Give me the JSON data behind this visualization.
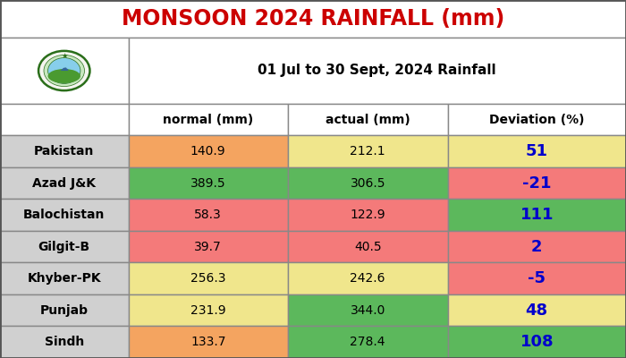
{
  "title": "MONSOON 2024 RAINFALL (mm)",
  "subtitle": "01 Jul to 30 Sept, 2024 Rainfall",
  "col_headers": [
    "normal (mm)",
    "actual (mm)",
    "Deviation (%)"
  ],
  "rows": [
    {
      "region": "Pakistan",
      "normal": "140.9",
      "actual": "212.1",
      "deviation": "51"
    },
    {
      "region": "Azad J&K",
      "normal": "389.5",
      "actual": "306.5",
      "deviation": "-21"
    },
    {
      "region": "Balochistan",
      "normal": "58.3",
      "actual": "122.9",
      "deviation": "111"
    },
    {
      "region": "Gilgit-B",
      "normal": "39.7",
      "actual": "40.5",
      "deviation": "2"
    },
    {
      "region": "Khyber-PK",
      "normal": "256.3",
      "actual": "242.6",
      "deviation": "-5"
    },
    {
      "region": "Punjab",
      "normal": "231.9",
      "actual": "344.0",
      "deviation": "48"
    },
    {
      "region": "Sindh",
      "normal": "133.7",
      "actual": "278.4",
      "deviation": "108"
    }
  ],
  "normal_colors": [
    "#f4a460",
    "#5cb85c",
    "#f47a7a",
    "#f47a7a",
    "#f0e68c",
    "#f0e68c",
    "#f4a460"
  ],
  "actual_colors": [
    "#f0e68c",
    "#5cb85c",
    "#f47a7a",
    "#f47a7a",
    "#f0e68c",
    "#5cb85c",
    "#5cb85c"
  ],
  "deviation_colors": [
    "#f0e68c",
    "#f47a7a",
    "#5cb85c",
    "#f47a7a",
    "#f47a7a",
    "#f0e68c",
    "#5cb85c"
  ],
  "deviation_text_colors": [
    "#0000cc",
    "#0000cc",
    "#0000cc",
    "#0000cc",
    "#0000cc",
    "#0000cc",
    "#0000cc"
  ],
  "region_bg": "#d0d0d0",
  "header_bg": "#ffffff",
  "title_color": "#cc0000",
  "title_fontsize": 17,
  "col_header_fontsize": 10,
  "data_fontsize": 10,
  "region_fontsize": 10,
  "deviation_fontsize": 13,
  "bg_color": "#f0f0f0",
  "outer_border_color": "#888888",
  "grid_color": "#888888"
}
